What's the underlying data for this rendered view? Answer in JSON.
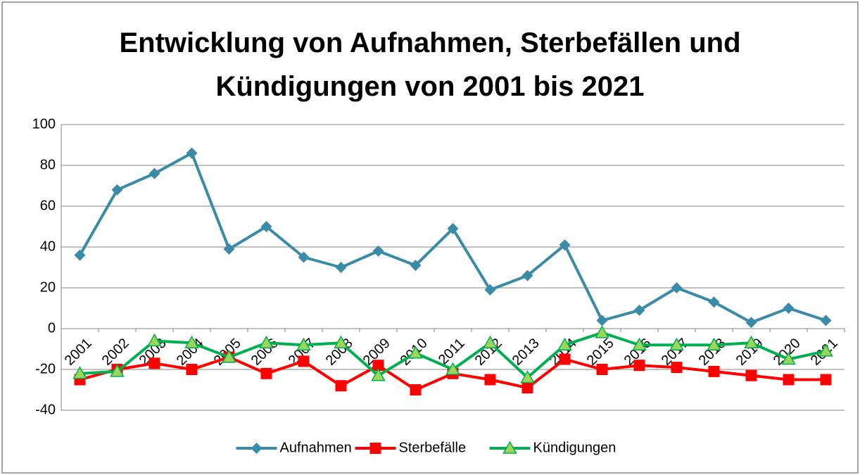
{
  "chart_data": {
    "type": "line",
    "title": "Entwicklung von Aufnahmen, Sterbefällen und Kündigungen von 2001 bis 2021",
    "categories": [
      "2001",
      "2002",
      "2003",
      "2004",
      "2005",
      "2006",
      "2007",
      "2008",
      "2009",
      "2010",
      "2011",
      "2012",
      "2013",
      "2014",
      "2015",
      "2016",
      "2017",
      "2018",
      "2019",
      "2020",
      "2021"
    ],
    "series": [
      {
        "name": "Aufnahmen",
        "color": "#3a8ba8",
        "marker": "diamond",
        "values": [
          36,
          68,
          76,
          86,
          39,
          50,
          35,
          30,
          38,
          31,
          49,
          19,
          26,
          41,
          4,
          9,
          20,
          13,
          3,
          10,
          4
        ]
      },
      {
        "name": "Sterbefälle",
        "color": "#ff0000",
        "marker": "square",
        "values": [
          -25,
          -20,
          -17,
          -20,
          -14,
          -22,
          -16,
          -28,
          -18,
          -30,
          -22,
          -25,
          -29,
          -15,
          -20,
          -18,
          -19,
          -21,
          -23,
          -25,
          -25
        ]
      },
      {
        "name": "Kündigungen",
        "color": "#00b050",
        "marker": "triangle",
        "values": [
          -22,
          -21,
          -6,
          -7,
          -14,
          -7,
          -8,
          -7,
          -23,
          -12,
          -20,
          -7,
          -24,
          -8,
          -2,
          -8,
          -8,
          -8,
          -7,
          -15,
          -11
        ]
      }
    ],
    "ylim": [
      -40,
      100
    ],
    "yticks": [
      -40,
      -20,
      0,
      20,
      40,
      60,
      80,
      100
    ],
    "grid": true,
    "legend": "bottom"
  }
}
